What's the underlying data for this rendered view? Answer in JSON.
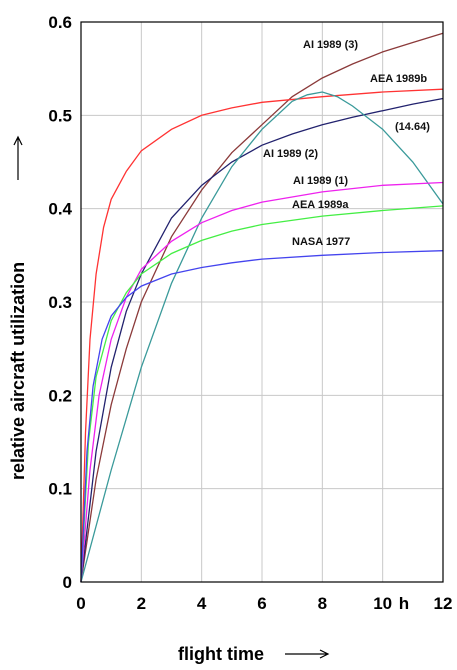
{
  "chart_data": {
    "type": "line",
    "xlabel": "flight time",
    "ylabel": "relative aircraft utilization",
    "x_unit": "h",
    "xlim": [
      0,
      12
    ],
    "ylim": [
      0,
      0.6
    ],
    "x_ticks": [
      0,
      2,
      4,
      6,
      8,
      10,
      12
    ],
    "y_ticks": [
      0,
      0.1,
      0.2,
      0.3,
      0.4,
      0.5,
      0.6
    ],
    "x_tick_labels": [
      "0",
      "2",
      "4",
      "6",
      "8",
      "10",
      "12"
    ],
    "y_tick_labels": [
      "0",
      "0.1",
      "0.2",
      "0.3",
      "0.4",
      "0.5",
      "0.6"
    ],
    "grid": true,
    "annotation": "(14.64)",
    "series": [
      {
        "name": "AI 1989 (3)",
        "color": "#8b3a3a",
        "x": [
          0,
          0.5,
          1,
          1.5,
          2,
          3,
          4,
          5,
          6,
          7,
          8,
          9,
          10,
          11,
          12
        ],
        "y": [
          0,
          0.11,
          0.19,
          0.25,
          0.3,
          0.37,
          0.42,
          0.46,
          0.49,
          0.52,
          0.54,
          0.555,
          0.568,
          0.578,
          0.588
        ]
      },
      {
        "name": "AEA 1989b",
        "color": "#ff3333",
        "x": [
          0,
          0.15,
          0.3,
          0.5,
          0.75,
          1,
          1.5,
          2,
          3,
          4,
          5,
          6,
          8,
          10,
          12
        ],
        "y": [
          0,
          0.16,
          0.26,
          0.33,
          0.38,
          0.41,
          0.44,
          0.462,
          0.485,
          0.5,
          0.508,
          0.514,
          0.52,
          0.525,
          0.528
        ]
      },
      {
        "name": "AI 1989 (2)",
        "color": "#22226e",
        "x": [
          0,
          0.5,
          1,
          1.5,
          2,
          3,
          4,
          5,
          6,
          7,
          8,
          9,
          10,
          11,
          12
        ],
        "y": [
          0,
          0.14,
          0.23,
          0.29,
          0.33,
          0.39,
          0.425,
          0.45,
          0.468,
          0.48,
          0.49,
          0.498,
          0.505,
          0.512,
          0.518
        ]
      },
      {
        "name": "(14.64)",
        "color": "#3a9a9a",
        "x": [
          0,
          1,
          2,
          3,
          4,
          5,
          6,
          7,
          7.5,
          8,
          8.5,
          9,
          10,
          11,
          12
        ],
        "y": [
          0,
          0.12,
          0.23,
          0.32,
          0.39,
          0.445,
          0.485,
          0.515,
          0.522,
          0.525,
          0.52,
          0.51,
          0.485,
          0.45,
          0.405
        ]
      },
      {
        "name": "AI 1989 (1)",
        "color": "#ee22ee",
        "x": [
          0,
          0.3,
          0.6,
          1,
          1.5,
          2,
          3,
          4,
          5,
          6,
          8,
          10,
          12
        ],
        "y": [
          0,
          0.12,
          0.2,
          0.26,
          0.305,
          0.335,
          0.365,
          0.385,
          0.398,
          0.407,
          0.418,
          0.425,
          0.428
        ]
      },
      {
        "name": "AEA 1989a",
        "color": "#44ee44",
        "x": [
          0,
          0.25,
          0.5,
          1,
          1.5,
          2,
          3,
          4,
          5,
          6,
          8,
          10,
          12
        ],
        "y": [
          0,
          0.15,
          0.22,
          0.28,
          0.31,
          0.33,
          0.352,
          0.366,
          0.376,
          0.383,
          0.392,
          0.398,
          0.403
        ]
      },
      {
        "name": "NASA 1977",
        "color": "#4444ee",
        "x": [
          0,
          0.2,
          0.4,
          0.7,
          1,
          1.5,
          2,
          3,
          4,
          5,
          6,
          8,
          10,
          12
        ],
        "y": [
          0,
          0.14,
          0.21,
          0.26,
          0.285,
          0.305,
          0.317,
          0.33,
          0.337,
          0.342,
          0.346,
          0.35,
          0.353,
          0.355
        ]
      }
    ]
  }
}
